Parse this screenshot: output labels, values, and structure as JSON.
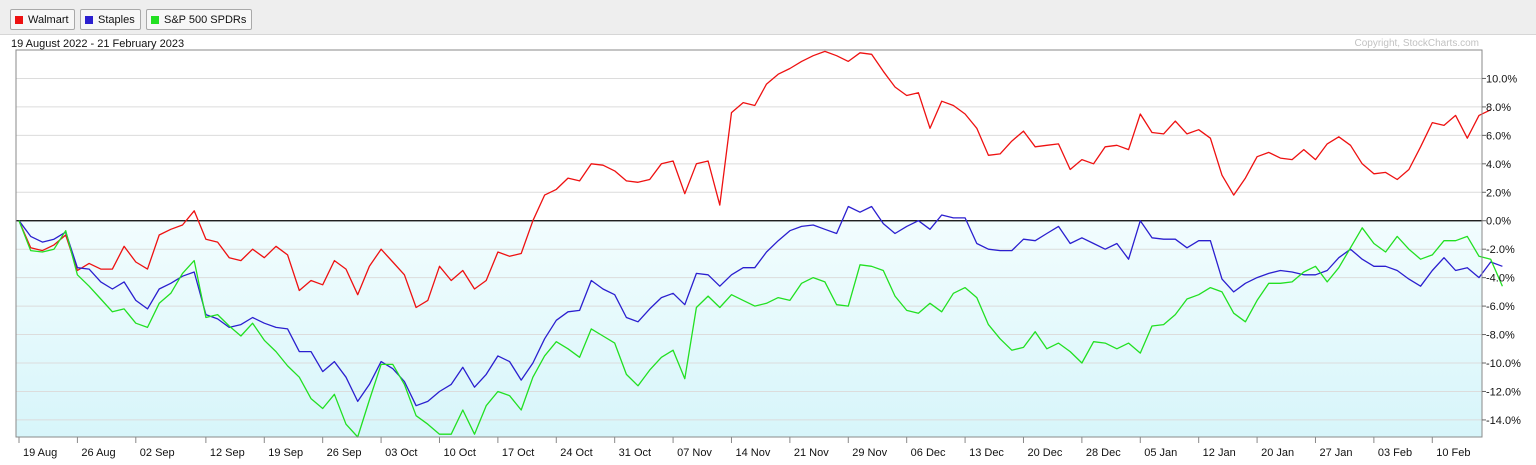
{
  "legend": [
    {
      "label": "Walmart",
      "color": "#ee1111"
    },
    {
      "label": "Staples",
      "color": "#2b1fcf"
    },
    {
      "label": "S&P 500 SPDRs",
      "color": "#22e022"
    }
  ],
  "date_range": "19 August 2022 - 21 February 2023",
  "copyright": "Copyright, StockCharts.com",
  "chart_data": {
    "type": "line",
    "title": "",
    "x_tick_labels": [
      "19 Aug",
      "26 Aug",
      "02 Sep",
      "12 Sep",
      "19 Sep",
      "26 Sep",
      "03 Oct",
      "10 Oct",
      "17 Oct",
      "24 Oct",
      "31 Oct",
      "07 Nov",
      "14 Nov",
      "21 Nov",
      "29 Nov",
      "06 Dec",
      "13 Dec",
      "20 Dec",
      "28 Dec",
      "05 Jan",
      "12 Jan",
      "20 Jan",
      "27 Jan",
      "03 Feb",
      "10 Feb"
    ],
    "y_tick_labels": [
      "10.0%",
      "8.0%",
      "6.0%",
      "4.0%",
      "2.0%",
      "0.0%",
      "-2.0%",
      "-4.0%",
      "-6.0%",
      "-8.0%",
      "-10.0%",
      "-12.0%",
      "-14.0%"
    ],
    "yticks": [
      10,
      8,
      6,
      4,
      2,
      0,
      -2,
      -4,
      -6,
      -8,
      -10,
      -12,
      -14
    ],
    "ylim": [
      -15.2,
      12
    ],
    "x_count": 126,
    "tick_indices": [
      0,
      5,
      10,
      16,
      21,
      26,
      31,
      36,
      41,
      46,
      51,
      56,
      61,
      66,
      71,
      76,
      81,
      86,
      91,
      96,
      101,
      106,
      111,
      116,
      121
    ],
    "grid": true,
    "legend_position": "top-left",
    "series": [
      {
        "name": "Walmart",
        "color": "#ee1111",
        "values": [
          0.0,
          -1.9,
          -2.1,
          -1.7,
          -1.0,
          -3.5,
          -3.0,
          -3.4,
          -3.4,
          -1.8,
          -2.9,
          -3.4,
          -1.0,
          -0.6,
          -0.3,
          0.7,
          -1.3,
          -1.5,
          -2.6,
          -2.8,
          -2.0,
          -2.6,
          -1.8,
          -2.4,
          -4.9,
          -4.2,
          -4.5,
          -2.8,
          -3.4,
          -5.2,
          -3.2,
          -2.0,
          -2.9,
          -3.8,
          -6.1,
          -5.6,
          -3.2,
          -4.2,
          -3.5,
          -4.8,
          -4.2,
          -2.2,
          -2.5,
          -2.3,
          0.0,
          1.8,
          2.2,
          3.0,
          2.8,
          4.0,
          3.9,
          3.5,
          2.8,
          2.7,
          2.9,
          4.0,
          4.2,
          1.9,
          4.0,
          4.2,
          1.1,
          7.6,
          8.3,
          8.1,
          9.6,
          10.3,
          10.7,
          11.2,
          11.6,
          11.9,
          11.6,
          11.2,
          11.8,
          11.7,
          10.5,
          9.4,
          8.8,
          9.0,
          6.5,
          8.4,
          8.1,
          7.5,
          6.5,
          4.6,
          4.7,
          5.6,
          6.3,
          5.2,
          5.3,
          5.4,
          3.6,
          4.3,
          4.0,
          5.2,
          5.3,
          5.0,
          7.5,
          6.2,
          6.1,
          7.0,
          6.1,
          6.4,
          5.8,
          3.2,
          1.8,
          3.0,
          4.5,
          4.8,
          4.4,
          4.3,
          5.0,
          4.3,
          5.4,
          5.9,
          5.3,
          4.0,
          3.3,
          3.4,
          2.9,
          3.6,
          5.2,
          6.9,
          6.7,
          7.4,
          5.8,
          7.4,
          7.8
        ]
      },
      {
        "name": "Staples",
        "color": "#2b1fcf",
        "values": [
          0.0,
          -1.1,
          -1.5,
          -1.3,
          -0.8,
          -3.3,
          -3.4,
          -4.3,
          -4.8,
          -4.3,
          -5.6,
          -6.2,
          -4.8,
          -4.4,
          -3.9,
          -3.6,
          -6.6,
          -6.9,
          -7.5,
          -7.3,
          -6.8,
          -7.2,
          -7.5,
          -7.6,
          -9.2,
          -9.2,
          -10.6,
          -9.9,
          -11.0,
          -12.7,
          -11.5,
          -9.9,
          -10.4,
          -11.3,
          -13.0,
          -12.7,
          -12.0,
          -11.5,
          -10.3,
          -11.7,
          -10.8,
          -9.5,
          -9.9,
          -11.2,
          -10.0,
          -8.3,
          -7.0,
          -6.4,
          -6.3,
          -4.2,
          -4.8,
          -5.2,
          -6.8,
          -7.1,
          -6.2,
          -5.4,
          -5.1,
          -5.9,
          -3.7,
          -3.8,
          -4.6,
          -3.8,
          -3.3,
          -3.3,
          -2.2,
          -1.4,
          -0.7,
          -0.4,
          -0.3,
          -0.6,
          -0.9,
          1.0,
          0.6,
          1.0,
          -0.2,
          -0.9,
          -0.4,
          0.0,
          -0.6,
          0.4,
          0.2,
          0.2,
          -1.6,
          -2.0,
          -2.1,
          -2.1,
          -1.3,
          -1.4,
          -0.9,
          -0.4,
          -1.6,
          -1.2,
          -1.6,
          -2.0,
          -1.6,
          -2.7,
          0.0,
          -1.2,
          -1.3,
          -1.3,
          -1.9,
          -1.4,
          -1.4,
          -4.1,
          -5.0,
          -4.4,
          -4.0,
          -3.7,
          -3.5,
          -3.6,
          -3.8,
          -3.8,
          -3.5,
          -2.6,
          -2.0,
          -2.7,
          -3.2,
          -3.2,
          -3.5,
          -4.1,
          -4.6,
          -3.5,
          -2.6,
          -3.5,
          -3.3,
          -4.0,
          -2.9,
          -3.2
        ]
      },
      {
        "name": "S&P 500 SPDRs",
        "color": "#22e022",
        "values": [
          0.0,
          -2.1,
          -2.2,
          -2.0,
          -0.7,
          -3.8,
          -4.6,
          -5.5,
          -6.4,
          -6.2,
          -7.2,
          -7.5,
          -5.8,
          -5.1,
          -3.7,
          -2.8,
          -6.8,
          -6.6,
          -7.4,
          -8.1,
          -7.2,
          -8.4,
          -9.2,
          -10.2,
          -11.0,
          -12.5,
          -13.2,
          -12.2,
          -14.3,
          -15.2,
          -12.6,
          -10.1,
          -10.1,
          -11.5,
          -13.7,
          -14.3,
          -15.0,
          -15.0,
          -13.3,
          -15.0,
          -13.0,
          -12.0,
          -12.3,
          -13.3,
          -11.0,
          -9.5,
          -8.5,
          -9.0,
          -9.6,
          -7.6,
          -8.1,
          -8.6,
          -10.8,
          -11.6,
          -10.5,
          -9.6,
          -9.1,
          -11.1,
          -6.1,
          -5.3,
          -6.1,
          -5.2,
          -5.6,
          -6.0,
          -5.8,
          -5.4,
          -5.6,
          -4.4,
          -4.0,
          -4.3,
          -5.9,
          -6.0,
          -3.1,
          -3.2,
          -3.5,
          -5.3,
          -6.3,
          -6.5,
          -5.8,
          -6.4,
          -5.1,
          -4.7,
          -5.4,
          -7.3,
          -8.3,
          -9.1,
          -8.9,
          -7.8,
          -9.0,
          -8.6,
          -9.2,
          -10.0,
          -8.5,
          -8.6,
          -9.0,
          -8.6,
          -9.3,
          -7.4,
          -7.3,
          -6.6,
          -5.5,
          -5.2,
          -4.7,
          -5.0,
          -6.5,
          -7.1,
          -5.6,
          -4.4,
          -4.4,
          -4.3,
          -3.6,
          -3.2,
          -4.3,
          -3.3,
          -1.9,
          -0.5,
          -1.6,
          -2.2,
          -1.1,
          -2.0,
          -2.7,
          -2.4,
          -1.4,
          -1.4,
          -1.1,
          -2.5,
          -2.7,
          -4.6
        ]
      }
    ]
  }
}
